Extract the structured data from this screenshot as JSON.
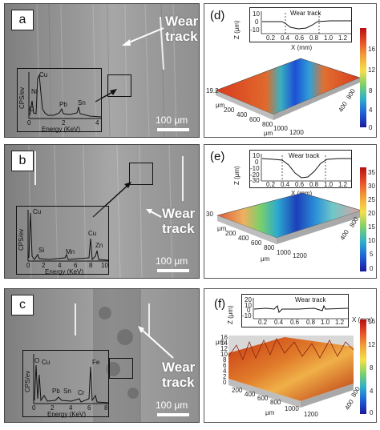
{
  "panel_a": {
    "letter": "a",
    "wear_label_line1": "Wear",
    "wear_label_line2": "track",
    "scale": "100 μm",
    "eds": {
      "ylabel": "CPS/ev",
      "xlabel": "Energy (KeV)",
      "ticks": [
        "0",
        "2",
        "4"
      ],
      "peaks": [
        "Cu",
        "Ni",
        "O",
        "Pb",
        "Sn"
      ]
    }
  },
  "panel_b": {
    "letter": "b",
    "wear_label_line1": "Wear",
    "wear_label_line2": "track",
    "scale": "100 μm",
    "eds": {
      "ylabel": "CPS/ev",
      "xlabel": "Energy (KeV)",
      "ticks": [
        "0",
        "2",
        "4",
        "6",
        "8",
        "10"
      ],
      "peaks": [
        "Cu",
        "Si",
        "Mn",
        "Cu",
        "Zn"
      ]
    }
  },
  "panel_c": {
    "letter": "c",
    "wear_label_line1": "Wear",
    "wear_label_line2": "track",
    "scale": "100 μm",
    "eds": {
      "ylabel": "CPS/ev",
      "xlabel": "Energy (KeV)",
      "ticks": [
        "0",
        "2",
        "4",
        "6",
        "8"
      ],
      "peaks": [
        "O",
        "Cu",
        "Pb",
        "Sn",
        "Cr",
        "Fe"
      ]
    }
  },
  "panel_d": {
    "letter": "(d)",
    "inset": {
      "title": "Wear track",
      "ylabel": "Z (μm)",
      "xlabel": "X (mm)",
      "yticks": [
        "10",
        "0",
        "-10"
      ],
      "xticks": [
        "0.2",
        "0.4",
        "0.6",
        "0.8",
        "1.0",
        "1.2"
      ]
    },
    "surface_axes": [
      "μm",
      "200",
      "400",
      "600",
      "800",
      "1000",
      "1200",
      "μm",
      "400",
      "800",
      "19.2"
    ],
    "colorbar": [
      "16",
      "12",
      "8",
      "4",
      "0"
    ]
  },
  "panel_e": {
    "letter": "(e)",
    "inset": {
      "title": "Wear track",
      "ylabel": "Z (μm)",
      "xlabel": "X (mm)",
      "yticks": [
        "10",
        "0",
        "-10",
        "-20",
        "-30"
      ],
      "xticks": [
        "0.2",
        "0.4",
        "0.6",
        "0.8",
        "1.0",
        "1.2"
      ]
    },
    "surface_axes": [
      "μm",
      "200",
      "400",
      "600",
      "800",
      "1000",
      "1200",
      "μm",
      "400",
      "800",
      "30"
    ],
    "colorbar": [
      "35",
      "30",
      "25",
      "20",
      "15",
      "10",
      "5",
      "0"
    ]
  },
  "panel_f": {
    "letter": "(f)",
    "inset": {
      "title": "Wear track",
      "ylabel": "Z (μm)",
      "xlabel": "X (mm)",
      "yticks": [
        "20",
        "10",
        "0",
        "-10"
      ],
      "xticks": [
        "0.2",
        "0.4",
        "0.6",
        "0.8",
        "1.0",
        "1.2"
      ]
    },
    "surface_axes": [
      "μm",
      "200",
      "400",
      "600",
      "800",
      "1000",
      "1200",
      "μm",
      "400",
      "800",
      "16",
      "14",
      "12",
      "10",
      "8",
      "6",
      "4",
      "2",
      "0"
    ],
    "colorbar": [
      "16",
      "12",
      "8",
      "4",
      "0"
    ]
  },
  "colors": {
    "eds_line": "#111111",
    "profile_line": "#111111",
    "worn_blue": "#1d4fd6",
    "surface_red": "#d83a1e"
  }
}
